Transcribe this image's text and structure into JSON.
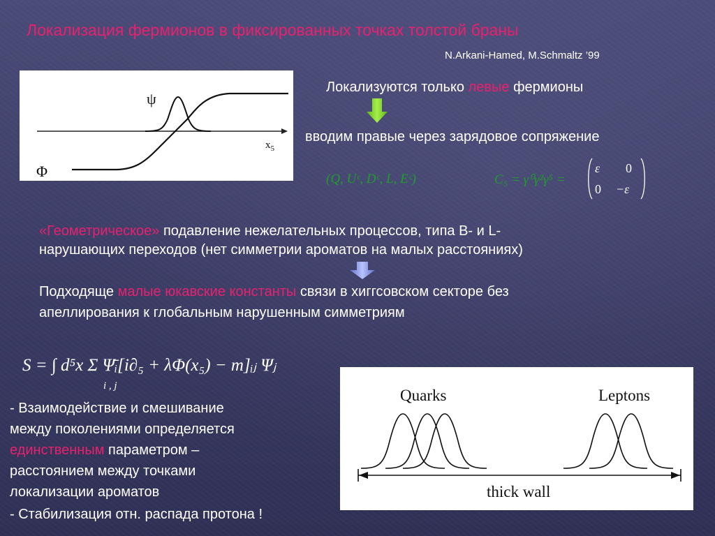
{
  "header": {
    "title": "Локализация фермионов в фиксированных точках толстой браны",
    "authors": "N.Arkani-Hamed, M.Schmaltz ’99"
  },
  "left_figure": {
    "psi_label": "ψ",
    "x5_base": "x",
    "x5_sub": "5",
    "phi_label": "Φ"
  },
  "right_text": {
    "line1_pre": "Локализуются только ",
    "line1_highlight": "левые",
    "line1_post": " фермионы",
    "line2": "вводим правые через зарядовое сопряжение",
    "fields_formula": "(Q, Uᶜ, Dᶜ, L, Eᶜ)",
    "c5_lhs": "C₅ = γ⁰γ²γ⁵ =",
    "matrix": {
      "a11": "ε",
      "a12": "0",
      "a21": "0",
      "a22": "−ε"
    }
  },
  "paragraph1": {
    "highlight": "«Геометрическое»",
    "line1_rest": " подавление нежелательных процессов, типа B- и L-",
    "line2": "нарушающих переходов (нет симметрии ароматов на малых расстояниях)"
  },
  "paragraph2": {
    "pre": "Подходяще ",
    "highlight": "малые юкавские константы",
    "line1_post": " связи в хиггсовском секторе без",
    "line2": "апеллирования к глобальным нарушенным симметриям"
  },
  "action_formula": {
    "text": "S = ∫ d⁵x Σ Ψ̄ᵢ[i∂₅ + λΦ(x₅) − m]ᵢⱼ Ψⱼ",
    "sum_index": "i , j"
  },
  "bottom_text": {
    "l1": "- Взаимодействие и смешивание",
    "l2": "между поколениями определяется",
    "l3_highlight": "единственным",
    "l3_rest": " параметром –",
    "l4": "расстоянием между точками",
    "l5": "локализации ароматов",
    "l6": "- Стабилизация отн. распада протона !"
  },
  "right_figure": {
    "quarks": "Quarks",
    "leptons": "Leptons",
    "wall": "thick wall"
  },
  "colors": {
    "highlight": "#e8216e",
    "formula_green": "#1f9e2a",
    "arrow_green": "#7ed321",
    "arrow_blue": "#7b8fe0",
    "background": "#3f4069"
  }
}
